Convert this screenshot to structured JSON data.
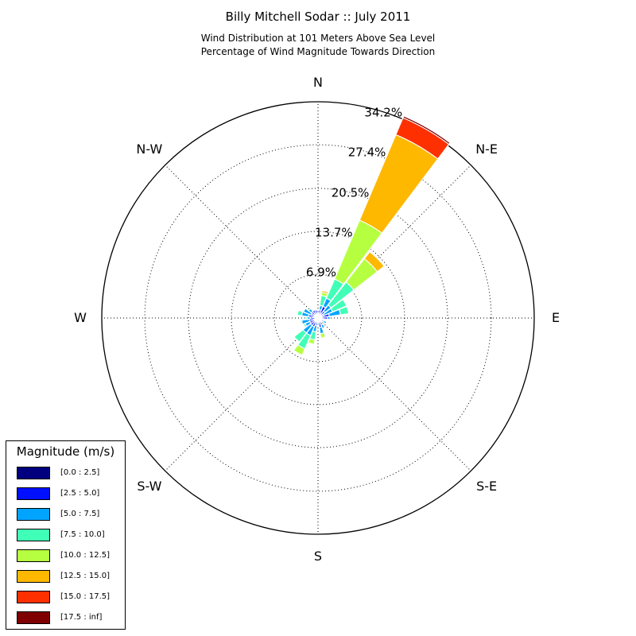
{
  "chart_data": {
    "type": "windrose",
    "title": "Billy Mitchell Sodar :: July 2011",
    "subtitle_lines": [
      "Wind Distribution at 101 Meters Above Sea Level",
      "Percentage of Wind Magnitude Towards Direction"
    ],
    "direction_labels": [
      "N",
      "N-E",
      "E",
      "S-E",
      "S",
      "S-W",
      "W",
      "N-W"
    ],
    "radial_ticks": [
      "6.9%",
      "13.7%",
      "20.5%",
      "27.4%",
      "34.2%"
    ],
    "radial_values": [
      6.9,
      13.7,
      20.5,
      27.4,
      34.2
    ],
    "r_max": 34.2,
    "grid": true,
    "legend": {
      "title": "Magnitude (m/s)",
      "position": "lower-left",
      "bins": [
        "[0.0 : 2.5]",
        "[2.5 : 5.0]",
        "[5.0 : 7.5]",
        "[7.5 : 10.0]",
        "[10.0 : 12.5]",
        "[12.5 : 15.0]",
        "[15.0 : 17.5]",
        "[17.5 : inf]"
      ],
      "colors": [
        "#00007f",
        "#0010ff",
        "#00a4ff",
        "#40ffb6",
        "#b6ff40",
        "#ffb800",
        "#ff3000",
        "#7f0000"
      ]
    },
    "bar_width_deg": 14,
    "directions_deg": [
      0,
      15,
      30,
      45,
      60,
      75,
      90,
      105,
      120,
      135,
      150,
      165,
      180,
      195,
      210,
      225,
      240,
      255,
      270,
      285,
      300,
      315,
      330,
      345
    ],
    "cumulative_pct": [
      [
        0.7,
        1.2,
        1.4,
        1.4,
        1.4,
        1.4,
        1.4,
        1.4
      ],
      [
        0.6,
        1.3,
        2.0,
        3.6,
        4.1,
        4.4,
        4.4,
        4.4
      ],
      [
        0.8,
        2.0,
        3.4,
        6.7,
        16.8,
        31.5,
        34.4,
        34.7
      ],
      [
        0.6,
        1.4,
        2.6,
        7.2,
        11.9,
        13.3,
        13.3,
        13.3
      ],
      [
        0.5,
        1.0,
        2.5,
        4.9,
        5.0,
        5.0,
        5.0,
        5.0
      ],
      [
        0.6,
        1.8,
        3.6,
        4.9,
        4.9,
        4.9,
        4.9,
        4.9
      ],
      [
        0.6,
        1.5,
        1.9,
        1.9,
        1.9,
        1.9,
        1.9,
        1.9
      ],
      [
        0.3,
        0.6,
        0.6,
        0.6,
        0.6,
        0.6,
        0.6,
        0.6
      ],
      [
        0.5,
        1.0,
        1.5,
        1.5,
        1.5,
        1.5,
        1.5,
        1.5
      ],
      [
        0.4,
        0.8,
        0.9,
        0.9,
        0.9,
        0.9,
        0.9,
        0.9
      ],
      [
        0.4,
        1.2,
        1.8,
        1.8,
        1.8,
        1.8,
        1.8,
        1.8
      ],
      [
        0.5,
        1.5,
        2.5,
        2.5,
        3.2,
        3.2,
        3.2,
        3.2
      ],
      [
        0.4,
        0.8,
        1.2,
        1.3,
        1.3,
        1.3,
        1.3,
        1.3
      ],
      [
        0.5,
        1.2,
        2.2,
        3.5,
        4.2,
        4.2,
        4.2,
        4.2
      ],
      [
        0.5,
        1.5,
        3.0,
        5.3,
        6.4,
        6.4,
        6.4,
        6.4
      ],
      [
        0.5,
        1.5,
        3.0,
        4.8,
        4.8,
        4.8,
        4.8,
        4.8
      ],
      [
        0.6,
        1.4,
        2.2,
        2.5,
        2.5,
        2.5,
        2.5,
        2.5
      ],
      [
        0.6,
        1.4,
        2.6,
        2.8,
        2.8,
        2.8,
        2.8,
        2.8
      ],
      [
        0.5,
        1.2,
        1.7,
        1.9,
        1.9,
        1.9,
        1.9,
        1.9
      ],
      [
        0.6,
        1.5,
        2.6,
        3.3,
        3.3,
        3.3,
        3.3,
        3.3
      ],
      [
        0.6,
        1.2,
        2.5,
        2.5,
        2.5,
        2.5,
        2.5,
        2.5
      ],
      [
        0.6,
        1.3,
        1.9,
        1.9,
        1.9,
        1.9,
        1.9,
        1.9
      ],
      [
        0.5,
        1.4,
        1.5,
        1.5,
        1.5,
        1.5,
        1.5,
        1.5
      ],
      [
        0.6,
        1.3,
        1.3,
        1.3,
        1.3,
        1.3,
        1.3,
        1.3
      ]
    ]
  }
}
